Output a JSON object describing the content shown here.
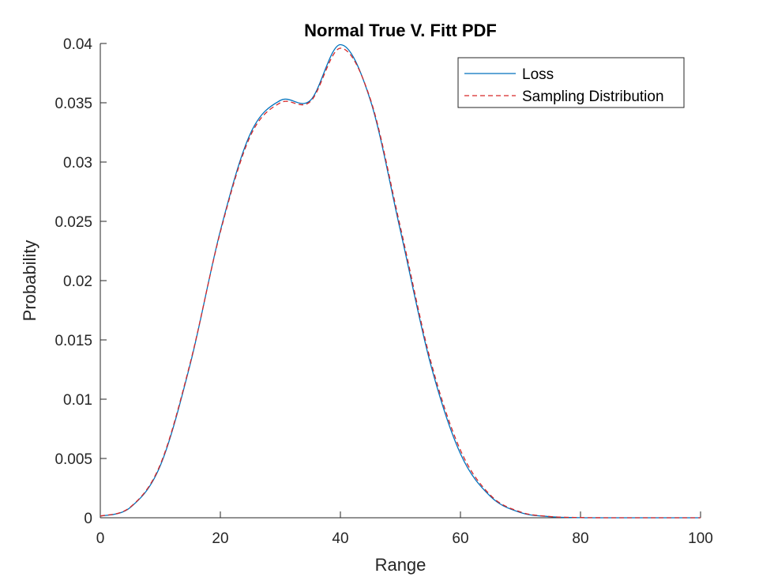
{
  "chart_data": {
    "type": "line",
    "title": "Normal True V. Fitt PDF",
    "xlabel": "Range",
    "ylabel": "Probability",
    "xlim": [
      0,
      100
    ],
    "ylim": [
      0,
      0.04
    ],
    "xticks": [
      0,
      20,
      40,
      60,
      80,
      100
    ],
    "xtick_labels": [
      "0",
      "20",
      "40",
      "60",
      "80",
      "100"
    ],
    "yticks": [
      0,
      0.005,
      0.01,
      0.015,
      0.02,
      0.025,
      0.03,
      0.035,
      0.04
    ],
    "ytick_labels": [
      "0",
      "0.005",
      "0.01",
      "0.015",
      "0.02",
      "0.025",
      "0.03",
      "0.035",
      "0.04"
    ],
    "grid": false,
    "legend_position": "top-right",
    "x": [
      0,
      5,
      10,
      15,
      20,
      25,
      30,
      35,
      40,
      45,
      50,
      55,
      60,
      65,
      70,
      75,
      80,
      85,
      90,
      95,
      100
    ],
    "series": [
      {
        "name": "Loss",
        "style": "solid",
        "color": "#0072BD",
        "values": [
          0.00013,
          0.00087,
          0.0044,
          0.013,
          0.0242,
          0.0324,
          0.0352,
          0.0352,
          0.0399,
          0.0352,
          0.0242,
          0.013,
          0.0054,
          0.0018,
          0.00044,
          9e-05,
          1e-05,
          0.0,
          0.0,
          0.0,
          0.0
        ]
      },
      {
        "name": "Sampling Distribution",
        "style": "dashed",
        "color": "#D62728",
        "values": [
          0.00014,
          0.0009,
          0.0045,
          0.0131,
          0.0241,
          0.0322,
          0.035,
          0.0351,
          0.0396,
          0.0353,
          0.0245,
          0.0133,
          0.0057,
          0.0019,
          0.00049,
          0.0001,
          2e-05,
          0.0,
          0.0,
          0.0,
          0.0
        ]
      }
    ]
  }
}
